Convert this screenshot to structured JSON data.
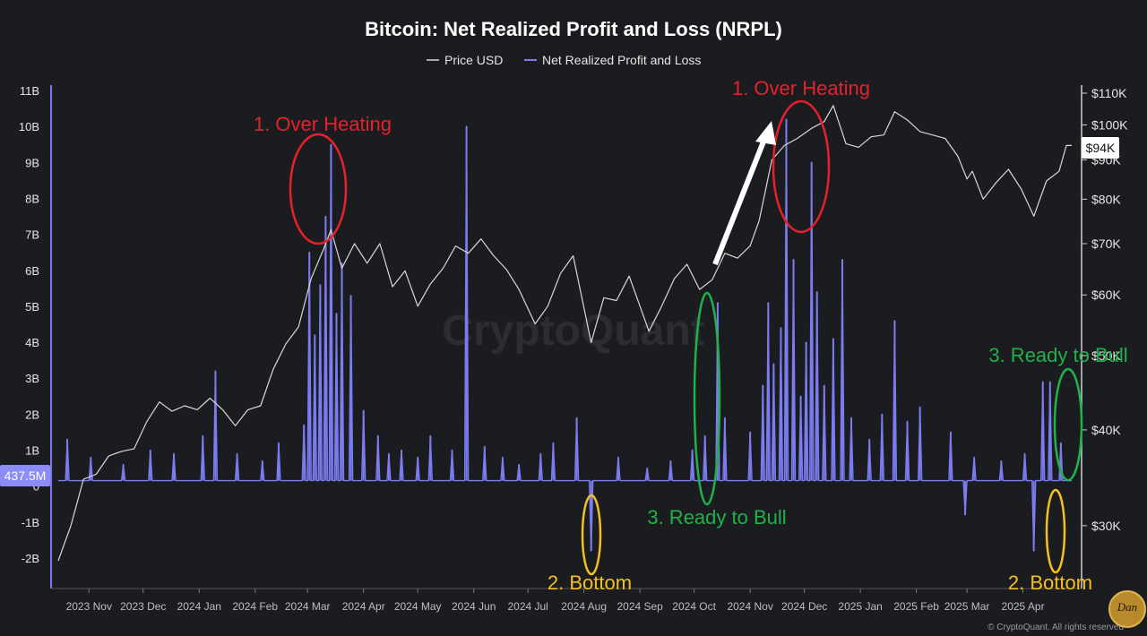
{
  "chart_data": {
    "type": "line",
    "title": "Bitcoin: Net Realized Profit and Loss (NRPL)",
    "legend": {
      "placement": "top-center",
      "items": [
        "Price USD",
        "Net Realized Profit and Loss"
      ]
    },
    "x": {
      "tick_labels": [
        "2023 Nov",
        "2023 Dec",
        "2024 Jan",
        "2024 Feb",
        "2024 Mar",
        "2024 Apr",
        "2024 May",
        "2024 Jun",
        "2024 Jul",
        "2024 Aug",
        "2024 Sep",
        "2024 Oct",
        "2024 Nov",
        "2024 Dec",
        "2025 Jan",
        "2025 Feb",
        "2025 Mar",
        "2025 Apr"
      ],
      "range": [
        "2023-10-15",
        "2025-04-28"
      ]
    },
    "y_left": {
      "tick_labels": [
        "11B",
        "10B",
        "9B",
        "8B",
        "7B",
        "6B",
        "5B",
        "4B",
        "3B",
        "2B",
        "1B",
        "0",
        "-1B",
        "-2B"
      ],
      "range": [
        -2.2,
        11
      ],
      "unit": "B"
    },
    "y_right": {
      "tick_labels": [
        "$110K",
        "$100K",
        "$90K",
        "$80K",
        "$70K",
        "$60K",
        "$50K",
        "$40K",
        "$30K"
      ],
      "scale": "log",
      "range": [
        26000,
        110000
      ]
    },
    "badges": {
      "left_value": "437.5M",
      "right_value": "$94K"
    },
    "series": [
      {
        "name": "Price USD",
        "color": "#d8d8d8",
        "axis": "right",
        "points": [
          [
            "2023-10-15",
            27000
          ],
          [
            "2023-10-22",
            30000
          ],
          [
            "2023-10-29",
            34500
          ],
          [
            "2023-11-05",
            35000
          ],
          [
            "2023-11-12",
            37000
          ],
          [
            "2023-11-19",
            37500
          ],
          [
            "2023-11-26",
            37800
          ],
          [
            "2023-12-03",
            41000
          ],
          [
            "2023-12-10",
            43500
          ],
          [
            "2023-12-17",
            42300
          ],
          [
            "2023-12-24",
            43000
          ],
          [
            "2023-12-31",
            42500
          ],
          [
            "2024-01-07",
            44000
          ],
          [
            "2024-01-14",
            42500
          ],
          [
            "2024-01-21",
            40500
          ],
          [
            "2024-01-28",
            42500
          ],
          [
            "2024-02-04",
            43000
          ],
          [
            "2024-02-11",
            48000
          ],
          [
            "2024-02-18",
            51800
          ],
          [
            "2024-02-25",
            54500
          ],
          [
            "2024-03-03",
            63000
          ],
          [
            "2024-03-10",
            69000
          ],
          [
            "2024-03-14",
            73000
          ],
          [
            "2024-03-20",
            65000
          ],
          [
            "2024-03-27",
            70000
          ],
          [
            "2024-04-03",
            66000
          ],
          [
            "2024-04-10",
            70000
          ],
          [
            "2024-04-17",
            61500
          ],
          [
            "2024-04-24",
            64500
          ],
          [
            "2024-05-01",
            58000
          ],
          [
            "2024-05-08",
            62000
          ],
          [
            "2024-05-15",
            65000
          ],
          [
            "2024-05-22",
            69500
          ],
          [
            "2024-05-29",
            68000
          ],
          [
            "2024-06-05",
            71000
          ],
          [
            "2024-06-12",
            67500
          ],
          [
            "2024-06-19",
            64800
          ],
          [
            "2024-06-26",
            61000
          ],
          [
            "2024-07-05",
            55000
          ],
          [
            "2024-07-12",
            58000
          ],
          [
            "2024-07-19",
            64000
          ],
          [
            "2024-07-26",
            67500
          ],
          [
            "2024-08-05",
            52000
          ],
          [
            "2024-08-12",
            59500
          ],
          [
            "2024-08-19",
            59000
          ],
          [
            "2024-08-26",
            63500
          ],
          [
            "2024-09-06",
            53800
          ],
          [
            "2024-09-13",
            58000
          ],
          [
            "2024-09-20",
            63000
          ],
          [
            "2024-09-27",
            65800
          ],
          [
            "2024-10-04",
            61000
          ],
          [
            "2024-10-11",
            62800
          ],
          [
            "2024-10-18",
            68000
          ],
          [
            "2024-10-25",
            67000
          ],
          [
            "2024-11-01",
            69500
          ],
          [
            "2024-11-06",
            75000
          ],
          [
            "2024-11-13",
            90000
          ],
          [
            "2024-11-20",
            94000
          ],
          [
            "2024-11-27",
            96000
          ],
          [
            "2024-12-05",
            99000
          ],
          [
            "2024-12-12",
            101000
          ],
          [
            "2024-12-17",
            106000
          ],
          [
            "2024-12-24",
            94500
          ],
          [
            "2024-12-31",
            93500
          ],
          [
            "2025-01-07",
            96500
          ],
          [
            "2025-01-14",
            97000
          ],
          [
            "2025-01-20",
            104000
          ],
          [
            "2025-01-27",
            101500
          ],
          [
            "2025-02-03",
            98000
          ],
          [
            "2025-02-10",
            97000
          ],
          [
            "2025-02-17",
            96000
          ],
          [
            "2025-02-24",
            91000
          ],
          [
            "2025-03-01",
            85000
          ],
          [
            "2025-03-04",
            87000
          ],
          [
            "2025-03-10",
            80000
          ],
          [
            "2025-03-17",
            84000
          ],
          [
            "2025-03-24",
            87500
          ],
          [
            "2025-03-31",
            82500
          ],
          [
            "2025-04-07",
            76000
          ],
          [
            "2025-04-14",
            84500
          ],
          [
            "2025-04-21",
            87000
          ],
          [
            "2025-04-25",
            94000
          ],
          [
            "2025-04-28",
            94000
          ]
        ]
      },
      {
        "name": "Net Realized Profit and Loss",
        "color": "#7b7cf0",
        "axis": "left",
        "spikes": [
          [
            "2023-10-20",
            1.3
          ],
          [
            "2023-11-02",
            0.8
          ],
          [
            "2023-11-20",
            0.6
          ],
          [
            "2023-12-05",
            1.0
          ],
          [
            "2023-12-18",
            0.9
          ],
          [
            "2024-01-03",
            1.4
          ],
          [
            "2024-01-10",
            3.2
          ],
          [
            "2024-01-22",
            0.9
          ],
          [
            "2024-02-05",
            0.7
          ],
          [
            "2024-02-14",
            1.2
          ],
          [
            "2024-02-28",
            1.7
          ],
          [
            "2024-03-02",
            6.5
          ],
          [
            "2024-03-05",
            4.2
          ],
          [
            "2024-03-08",
            5.6
          ],
          [
            "2024-03-11",
            7.5
          ],
          [
            "2024-03-14",
            9.5
          ],
          [
            "2024-03-17",
            4.8
          ],
          [
            "2024-03-20",
            6.2
          ],
          [
            "2024-03-25",
            5.3
          ],
          [
            "2024-04-01",
            2.1
          ],
          [
            "2024-04-09",
            1.4
          ],
          [
            "2024-04-15",
            0.9
          ],
          [
            "2024-04-22",
            1.0
          ],
          [
            "2024-05-01",
            0.8
          ],
          [
            "2024-05-08",
            1.4
          ],
          [
            "2024-05-20",
            1.0
          ],
          [
            "2024-05-28",
            10.0
          ],
          [
            "2024-06-07",
            1.1
          ],
          [
            "2024-06-17",
            0.8
          ],
          [
            "2024-06-26",
            0.6
          ],
          [
            "2024-07-08",
            0.9
          ],
          [
            "2024-07-15",
            1.2
          ],
          [
            "2024-07-28",
            1.9
          ],
          [
            "2024-08-05",
            -1.8
          ],
          [
            "2024-08-20",
            0.8
          ],
          [
            "2024-09-05",
            0.5
          ],
          [
            "2024-09-18",
            0.7
          ],
          [
            "2024-09-30",
            1.0
          ],
          [
            "2024-10-07",
            1.4
          ],
          [
            "2024-10-14",
            5.1
          ],
          [
            "2024-10-18",
            1.9
          ],
          [
            "2024-11-01",
            1.5
          ],
          [
            "2024-11-08",
            2.8
          ],
          [
            "2024-11-11",
            5.1
          ],
          [
            "2024-11-14",
            3.4
          ],
          [
            "2024-11-18",
            4.4
          ],
          [
            "2024-11-21",
            10.2
          ],
          [
            "2024-11-25",
            6.3
          ],
          [
            "2024-11-29",
            2.5
          ],
          [
            "2024-12-02",
            4.0
          ],
          [
            "2024-12-05",
            9.0
          ],
          [
            "2024-12-08",
            5.4
          ],
          [
            "2024-12-12",
            2.8
          ],
          [
            "2024-12-17",
            4.1
          ],
          [
            "2024-12-22",
            6.3
          ],
          [
            "2024-12-27",
            1.9
          ],
          [
            "2025-01-06",
            1.3
          ],
          [
            "2025-01-13",
            2.0
          ],
          [
            "2025-01-20",
            4.6
          ],
          [
            "2025-01-27",
            1.8
          ],
          [
            "2025-02-03",
            2.2
          ],
          [
            "2025-02-20",
            1.5
          ],
          [
            "2025-02-28",
            -0.8
          ],
          [
            "2025-03-05",
            0.8
          ],
          [
            "2025-03-20",
            0.7
          ],
          [
            "2025-04-02",
            0.9
          ],
          [
            "2025-04-07",
            -1.8
          ],
          [
            "2025-04-12",
            2.9
          ],
          [
            "2025-04-16",
            2.9
          ],
          [
            "2025-04-22",
            1.2
          ]
        ]
      }
    ],
    "annotations": [
      {
        "text": "1. Over Heating",
        "color": "#e8202a"
      },
      {
        "text": "1. Over Heating",
        "color": "#e8202a"
      },
      {
        "text": "2. Bottom",
        "color": "#f4c020"
      },
      {
        "text": "2. Bottom",
        "color": "#f4c020"
      },
      {
        "text": "3. Ready to Bull",
        "color": "#1fb14a"
      },
      {
        "text": "3. Ready to Bull",
        "color": "#1fb14a"
      }
    ],
    "watermark": "CryptoQuant",
    "footer": "© CryptoQuant. All rights reserved",
    "logo_text": "Dan"
  }
}
